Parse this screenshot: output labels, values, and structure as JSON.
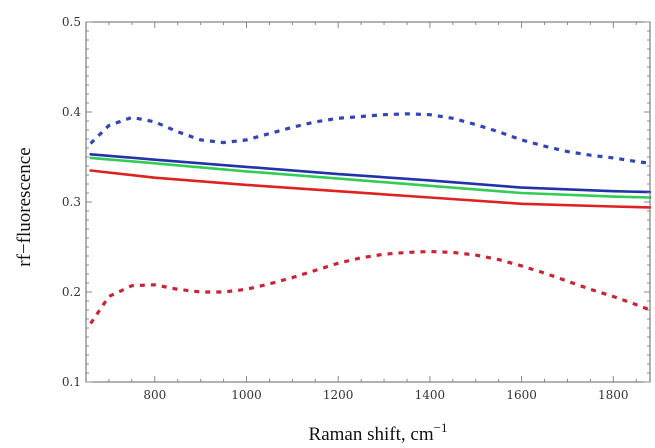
{
  "chart_data": {
    "type": "line",
    "title": "",
    "xlabel": "Raman shift, cm",
    "xlabel_superscript": "−1",
    "ylabel": "rf−fluorescence",
    "xlim": [
      650,
      1880
    ],
    "ylim": [
      0.1,
      0.5
    ],
    "x_ticks": [
      {
        "value": 800,
        "label": "800"
      },
      {
        "value": 1000,
        "label": "1000"
      },
      {
        "value": 1200,
        "label": "1200"
      },
      {
        "value": 1400,
        "label": "1400"
      },
      {
        "value": 1600,
        "label": "1600"
      },
      {
        "value": 1800,
        "label": "1800"
      }
    ],
    "y_ticks": [
      {
        "value": 0.1,
        "label": "0.1"
      },
      {
        "value": 0.2,
        "label": "0.2"
      },
      {
        "value": 0.3,
        "label": "0.3"
      },
      {
        "value": 0.4,
        "label": "0.4"
      },
      {
        "value": 0.5,
        "label": "0.5"
      }
    ],
    "grid": false,
    "legend": "none",
    "series": [
      {
        "color": "#3344bb",
        "style": "dashed",
        "x": [
          660,
          700,
          750,
          800,
          850,
          900,
          950,
          1000,
          1050,
          1100,
          1150,
          1200,
          1250,
          1300,
          1350,
          1400,
          1450,
          1500,
          1550,
          1600,
          1650,
          1700,
          1750,
          1800,
          1850,
          1880
        ],
        "y": [
          0.365,
          0.385,
          0.394,
          0.389,
          0.378,
          0.369,
          0.366,
          0.369,
          0.376,
          0.383,
          0.389,
          0.393,
          0.395,
          0.397,
          0.398,
          0.397,
          0.393,
          0.386,
          0.378,
          0.369,
          0.362,
          0.356,
          0.352,
          0.349,
          0.345,
          0.343
        ]
      },
      {
        "color": "#2233aa",
        "style": "solid",
        "x": [
          660,
          800,
          1000,
          1200,
          1400,
          1600,
          1800,
          1880
        ],
        "y": [
          0.353,
          0.347,
          0.339,
          0.331,
          0.324,
          0.316,
          0.312,
          0.311
        ]
      },
      {
        "color": "#33cc55",
        "style": "solid",
        "x": [
          660,
          800,
          1000,
          1200,
          1400,
          1600,
          1800,
          1880
        ],
        "y": [
          0.349,
          0.343,
          0.334,
          0.326,
          0.318,
          0.31,
          0.306,
          0.305
        ]
      },
      {
        "color": "#dd2222",
        "style": "solid",
        "x": [
          660,
          800,
          1000,
          1200,
          1400,
          1600,
          1800,
          1880
        ],
        "y": [
          0.335,
          0.327,
          0.319,
          0.312,
          0.305,
          0.298,
          0.295,
          0.294
        ]
      },
      {
        "color": "#cc2233",
        "style": "dashed",
        "x": [
          660,
          700,
          750,
          800,
          850,
          900,
          950,
          1000,
          1050,
          1100,
          1150,
          1200,
          1250,
          1300,
          1350,
          1400,
          1450,
          1500,
          1550,
          1600,
          1650,
          1700,
          1750,
          1800,
          1850,
          1880
        ],
        "y": [
          0.165,
          0.195,
          0.207,
          0.208,
          0.203,
          0.2,
          0.2,
          0.203,
          0.209,
          0.216,
          0.224,
          0.232,
          0.238,
          0.242,
          0.244,
          0.245,
          0.244,
          0.241,
          0.236,
          0.229,
          0.221,
          0.212,
          0.203,
          0.195,
          0.186,
          0.18
        ]
      }
    ]
  }
}
